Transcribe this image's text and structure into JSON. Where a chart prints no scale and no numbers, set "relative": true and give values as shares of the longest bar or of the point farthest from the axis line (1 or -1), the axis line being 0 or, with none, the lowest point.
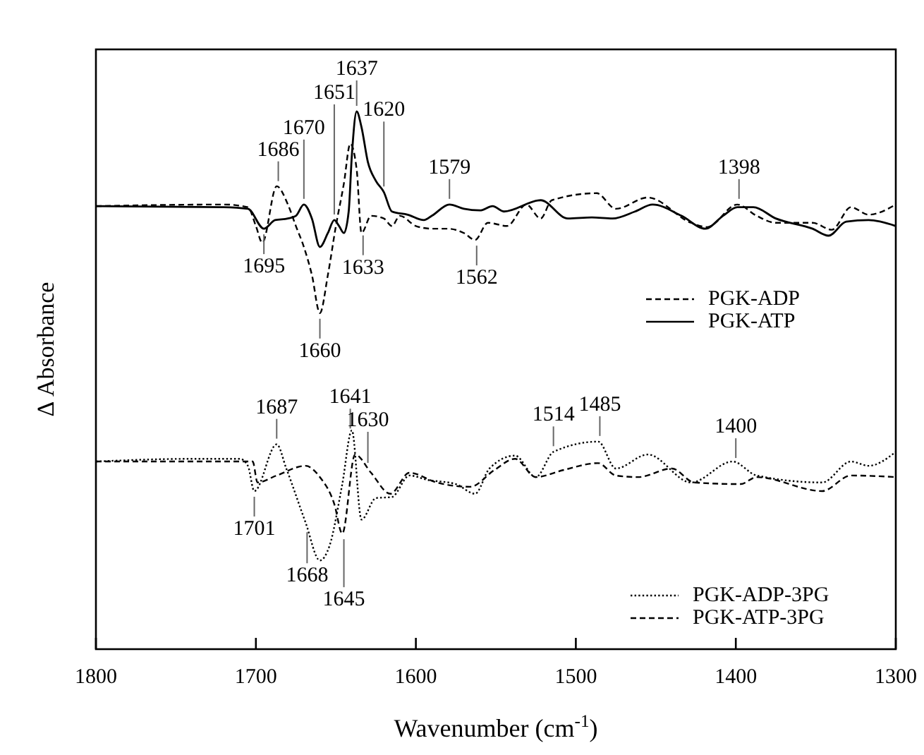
{
  "chart_data": {
    "type": "line",
    "relative": true,
    "xlabel": "Wavenumber (cm$^{-1}$)",
    "ylabel": "Δ Absorbance",
    "xlim": [
      1800,
      1300
    ],
    "xticks": [
      1800,
      1700,
      1600,
      1500,
      1400,
      1300
    ],
    "legend": "right",
    "grid": false,
    "series": [
      {
        "name": "PGK-ADP",
        "color": "#000000",
        "line_style": "dashed",
        "x": [
          1800,
          1720,
          1705,
          1700,
          1696,
          1687,
          1680,
          1675,
          1670,
          1665,
          1660,
          1655,
          1650,
          1645,
          1641,
          1637,
          1634,
          1628,
          1620,
          1615,
          1610,
          1600,
          1590,
          1580,
          1570,
          1563,
          1555,
          1543,
          1531,
          1522,
          1515,
          1487,
          1475,
          1455,
          1428,
          1418,
          1399,
          1387,
          1375,
          1352,
          1340,
          1328,
          1317,
          1300
        ],
        "values": [
          0.824,
          0.827,
          0.822,
          0.787,
          0.756,
          0.861,
          0.827,
          0.787,
          0.748,
          0.696,
          0.625,
          0.696,
          0.787,
          0.866,
          0.94,
          0.892,
          0.774,
          0.806,
          0.801,
          0.787,
          0.806,
          0.787,
          0.782,
          0.782,
          0.774,
          0.761,
          0.793,
          0.787,
          0.827,
          0.801,
          0.835,
          0.848,
          0.819,
          0.84,
          0.793,
          0.785,
          0.827,
          0.806,
          0.793,
          0.793,
          0.78,
          0.822,
          0.808,
          0.827
        ]
      },
      {
        "name": "PGK-ATP",
        "color": "#000000",
        "line_style": "solid",
        "x": [
          1800,
          1720,
          1705,
          1695,
          1688,
          1680,
          1675,
          1670,
          1665,
          1660,
          1655,
          1651,
          1648,
          1645,
          1642,
          1640,
          1637,
          1634,
          1630,
          1625,
          1620,
          1615,
          1605,
          1595,
          1590,
          1579,
          1570,
          1560,
          1552,
          1545,
          1522,
          1505,
          1490,
          1477,
          1463,
          1452,
          1434,
          1419,
          1408,
          1399,
          1389,
          1375,
          1352,
          1342,
          1331,
          1317,
          1300
        ],
        "values": [
          0.824,
          0.822,
          0.819,
          0.782,
          0.798,
          0.801,
          0.806,
          0.827,
          0.801,
          0.748,
          0.774,
          0.798,
          0.787,
          0.774,
          0.814,
          0.919,
          1,
          0.971,
          0.906,
          0.871,
          0.85,
          0.814,
          0.808,
          0.798,
          0.806,
          0.827,
          0.819,
          0.816,
          0.824,
          0.814,
          0.835,
          0.801,
          0.803,
          0.801,
          0.814,
          0.827,
          0.806,
          0.782,
          0.806,
          0.822,
          0.822,
          0.801,
          0.782,
          0.769,
          0.795,
          0.798,
          0.787
        ]
      },
      {
        "name": "PGK-ADP-3PG",
        "color": "#000000",
        "line_style": "dotted",
        "x": [
          1800,
          1740,
          1710,
          1705,
          1701,
          1687,
          1681,
          1669,
          1660,
          1654,
          1646,
          1640,
          1634,
          1625,
          1615,
          1604,
          1593,
          1575,
          1563,
          1554,
          1538,
          1525,
          1514,
          1486,
          1475,
          1455,
          1428,
          1402,
          1387,
          1346,
          1328,
          1317,
          1300
        ],
        "values": [
          0.349,
          0.354,
          0.354,
          0.341,
          0.294,
          0.381,
          0.336,
          0.236,
          0.165,
          0.192,
          0.307,
          0.407,
          0.241,
          0.281,
          0.283,
          0.323,
          0.315,
          0.307,
          0.289,
          0.336,
          0.36,
          0.32,
          0.367,
          0.386,
          0.336,
          0.362,
          0.31,
          0.349,
          0.323,
          0.31,
          0.349,
          0.341,
          0.367
        ]
      },
      {
        "name": "PGK-ATP-3PG",
        "color": "#000000",
        "line_style": "dashed",
        "x": [
          1800,
          1710,
          1702,
          1699,
          1687,
          1669,
          1660,
          1651,
          1646,
          1638,
          1628,
          1616,
          1604,
          1587,
          1566,
          1551,
          1538,
          1525,
          1508,
          1486,
          1475,
          1461,
          1440,
          1426,
          1397,
          1387,
          1346,
          1328,
          1300
        ],
        "values": [
          0.349,
          0.349,
          0.349,
          0.31,
          0.323,
          0.341,
          0.32,
          0.27,
          0.215,
          0.362,
          0.328,
          0.289,
          0.328,
          0.31,
          0.302,
          0.333,
          0.354,
          0.32,
          0.333,
          0.346,
          0.323,
          0.32,
          0.336,
          0.31,
          0.307,
          0.32,
          0.294,
          0.323,
          0.32
        ]
      }
    ],
    "annotations": [
      {
        "text": "1651",
        "x": 1651,
        "y": 0.798
      },
      {
        "text": "1637",
        "x": 1637,
        "y": 1
      },
      {
        "text": "1686",
        "x": 1686,
        "y": 0.86
      },
      {
        "text": "1670",
        "x": 1670,
        "y": 0.827
      },
      {
        "text": "1620",
        "x": 1620,
        "y": 0.85
      },
      {
        "text": "1579",
        "x": 1579,
        "y": 0.827
      },
      {
        "text": "1695",
        "x": 1695,
        "y": 0.782
      },
      {
        "text": "1660",
        "x": 1660,
        "y": 0.625
      },
      {
        "text": "1633",
        "x": 1633,
        "y": 0.78
      },
      {
        "text": "1562",
        "x": 1562,
        "y": 0.761
      },
      {
        "text": "1398",
        "x": 1398,
        "y": 0.827
      },
      {
        "text": "1687",
        "x": 1687,
        "y": 0.381
      },
      {
        "text": "1641",
        "x": 1641,
        "y": 0.4
      },
      {
        "text": "1630",
        "x": 1630,
        "y": 0.336
      },
      {
        "text": "1701",
        "x": 1701,
        "y": 0.294
      },
      {
        "text": "1668",
        "x": 1668,
        "y": 0.228
      },
      {
        "text": "1645",
        "x": 1645,
        "y": 0.215
      },
      {
        "text": "1514",
        "x": 1514,
        "y": 0.367
      },
      {
        "text": "1485",
        "x": 1485,
        "y": 0.386
      },
      {
        "text": "1400",
        "x": 1400,
        "y": 0.345
      }
    ]
  }
}
